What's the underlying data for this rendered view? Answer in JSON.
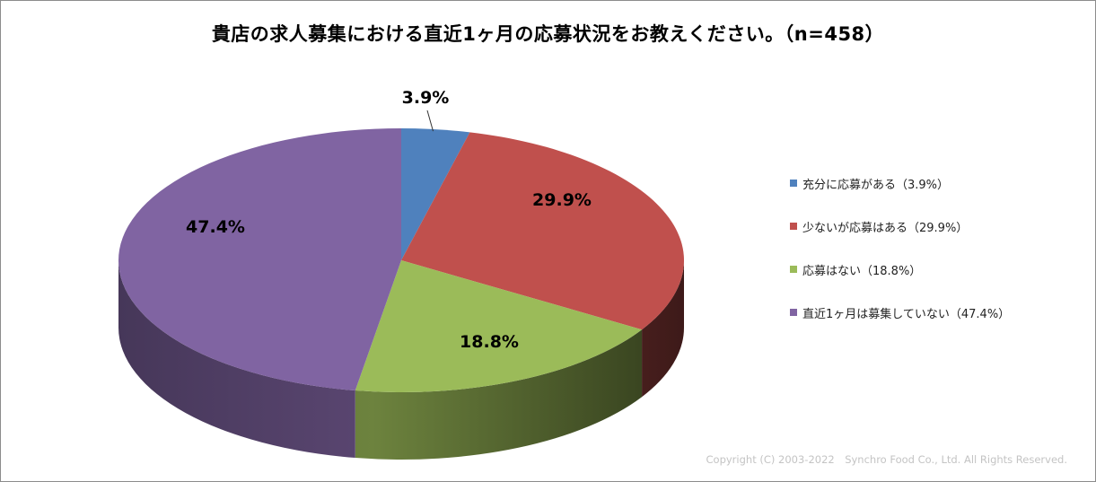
{
  "title": "貴店の求人募集における直近1ヶ月の応募状況をお教えください。（n=458）",
  "copyright": "Copyright (C) 2003-2022　Synchro Food Co., Ltd. All Rights Reserved.",
  "chart_data": {
    "type": "pie",
    "title": "貴店の求人募集における直近1ヶ月の応募状況をお教えください。（n=458）",
    "slices": [
      {
        "label": "充分に応募がある",
        "value": 3.9,
        "data_label": "3.9%",
        "legend": "充分に応募がある（3.9%）",
        "color": "#4f81bd"
      },
      {
        "label": "少ないが応募はある",
        "value": 29.9,
        "data_label": "29.9%",
        "legend": "少ないが応募はある（29.9%）",
        "color": "#c0504d"
      },
      {
        "label": "応募はない",
        "value": 18.8,
        "data_label": "18.8%",
        "legend": "応募はない（18.8%）",
        "color": "#9bbb59"
      },
      {
        "label": "直近1ヶ月は募集していない",
        "value": 47.4,
        "data_label": "47.4%",
        "legend": "直近1ヶ月は募集していない（47.4%）",
        "color": "#8064a2"
      }
    ],
    "legend_position": "right",
    "style": "3d"
  }
}
